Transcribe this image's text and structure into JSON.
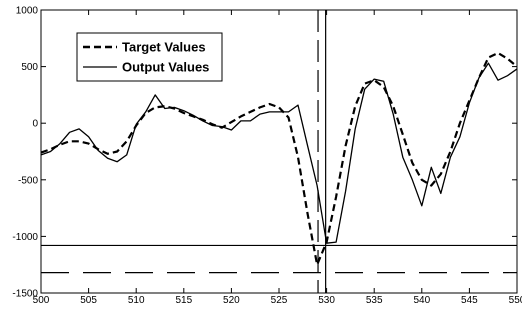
{
  "chart_data": {
    "type": "line",
    "title": "",
    "xlabel": "",
    "ylabel": "",
    "xlim": [
      500,
      550
    ],
    "ylim": [
      -1500,
      1000
    ],
    "xticks": [
      500,
      505,
      510,
      515,
      520,
      525,
      530,
      535,
      540,
      545,
      550
    ],
    "yticks": [
      -1500,
      -1000,
      -500,
      0,
      500,
      1000
    ],
    "legend": {
      "position": "top-left",
      "entries": [
        "Target Values",
        "Output Values"
      ]
    },
    "series": [
      {
        "name": "Target Values",
        "style": "dashed",
        "color": "#000000",
        "x": [
          500,
          501,
          502,
          503,
          504,
          505,
          506,
          507,
          508,
          509,
          510,
          511,
          512,
          513,
          514,
          515,
          516,
          517,
          518,
          519,
          520,
          521,
          522,
          523,
          524,
          525,
          526,
          527,
          528,
          529,
          530,
          531,
          532,
          533,
          534,
          535,
          536,
          537,
          538,
          539,
          540,
          541,
          542,
          543,
          544,
          545,
          546,
          547,
          548,
          549,
          550
        ],
        "values": [
          -260,
          -230,
          -190,
          -160,
          -160,
          -180,
          -230,
          -270,
          -250,
          -160,
          -20,
          90,
          140,
          150,
          130,
          90,
          60,
          30,
          -10,
          -40,
          10,
          60,
          100,
          140,
          170,
          140,
          50,
          -300,
          -800,
          -1250,
          -1050,
          -650,
          -200,
          150,
          350,
          380,
          320,
          150,
          -100,
          -350,
          -500,
          -550,
          -450,
          -250,
          0,
          200,
          400,
          580,
          620,
          570,
          500
        ]
      },
      {
        "name": "Output Values",
        "style": "solid",
        "color": "#000000",
        "x": [
          500,
          501,
          502,
          503,
          504,
          505,
          506,
          507,
          508,
          509,
          510,
          511,
          512,
          513,
          514,
          515,
          516,
          517,
          518,
          519,
          520,
          521,
          522,
          523,
          524,
          525,
          526,
          527,
          528,
          529,
          530,
          531,
          532,
          533,
          534,
          535,
          536,
          537,
          538,
          539,
          540,
          541,
          542,
          543,
          544,
          545,
          546,
          547,
          548,
          549,
          550
        ],
        "values": [
          -280,
          -250,
          -180,
          -80,
          -50,
          -120,
          -240,
          -310,
          -340,
          -280,
          -10,
          100,
          250,
          130,
          140,
          110,
          70,
          20,
          -20,
          -30,
          -60,
          20,
          20,
          80,
          100,
          100,
          100,
          160,
          -200,
          -550,
          -1060,
          -1050,
          -600,
          -50,
          300,
          390,
          370,
          80,
          -300,
          -500,
          -730,
          -390,
          -620,
          -300,
          -120,
          180,
          400,
          530,
          380,
          420,
          480
        ]
      }
    ],
    "reference_lines": [
      {
        "orientation": "horizontal",
        "value": -1080,
        "style": "solid"
      },
      {
        "orientation": "horizontal",
        "value": -1320,
        "style": "long-dash"
      },
      {
        "orientation": "vertical",
        "value": 529.9,
        "style": "solid"
      },
      {
        "orientation": "vertical",
        "value": 529.1,
        "style": "long-dash"
      }
    ]
  }
}
